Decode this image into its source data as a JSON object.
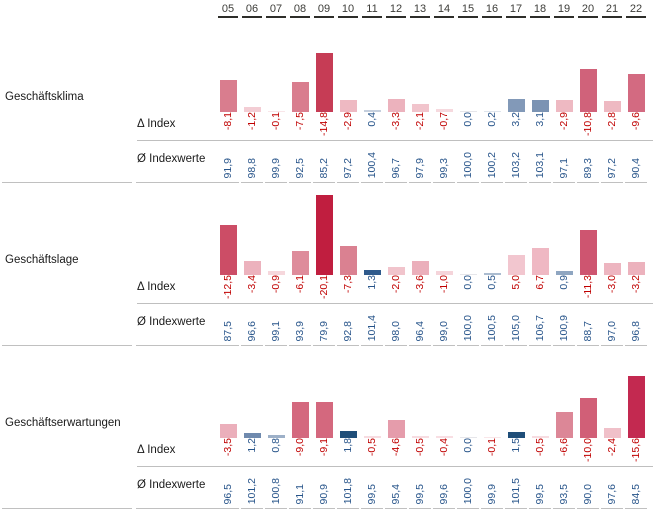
{
  "years": [
    "05",
    "06",
    "07",
    "08",
    "09",
    "10",
    "11",
    "12",
    "13",
    "14",
    "15",
    "16",
    "17",
    "18",
    "19",
    "20",
    "21",
    "22"
  ],
  "labels": {
    "delta": "Δ Index",
    "avg": "Ø Indexwerte"
  },
  "colors": {
    "negative_text": "#c00000",
    "positive_text": "#27548a",
    "avg_text": "#27548a",
    "year_text": "#3c3c38",
    "grid_line": "#bfbfbf",
    "zero_bar": "#e6e6ea"
  },
  "sections": [
    {
      "label": "Geschäftsklima",
      "delta": [
        "-8,1",
        "-1,2",
        "-0,1",
        "-7,5",
        "-14,8",
        "-2,9",
        "0,4",
        "-3,3",
        "-2,1",
        "-0,7",
        "0,0",
        "0,2",
        "3,2",
        "3,1",
        "-2,9",
        "-10,8",
        "-2,8",
        "-9,6"
      ],
      "delta_values": [
        -8.1,
        -1.2,
        -0.1,
        -7.5,
        -14.8,
        -2.9,
        0.4,
        -3.3,
        -2.1,
        -0.7,
        0.0,
        0.2,
        3.2,
        3.1,
        -2.9,
        -10.8,
        -2.8,
        -9.6
      ],
      "delta_text_colors": [
        "red",
        "red",
        "red",
        "red",
        "red",
        "red",
        "blue",
        "red",
        "red",
        "red",
        "blue",
        "blue",
        "blue",
        "blue",
        "red",
        "red",
        "red",
        "red"
      ],
      "bar_colors": [
        "#d97d8e",
        "#f3cdd4",
        "#f9e6e9",
        "#d97d8e",
        "#c63c55",
        "#eeb9c2",
        "#c5cfdd",
        "#ecb2bd",
        "#f1c4cc",
        "#f6d9de",
        "#e6e6ea",
        "#dfe5ed",
        "#8299b8",
        "#7b93b3",
        "#eeb9c2",
        "#d0627a",
        "#eeb9c2",
        "#d36a81"
      ],
      "avg": [
        "91,9",
        "98,8",
        "99,9",
        "92,5",
        "85,2",
        "97,2",
        "100,4",
        "96,7",
        "97,9",
        "99,3",
        "100,0",
        "100,2",
        "103,2",
        "103,1",
        "97,1",
        "89,3",
        "97,2",
        "90,4"
      ]
    },
    {
      "label": "Geschäftslage",
      "delta": [
        "-12,5",
        "-3,4",
        "-0,9",
        "-6,1",
        "-20,1",
        "-7,3",
        "1,3",
        "-2,0",
        "-3,6",
        "-1,0",
        "0,0",
        "0,5",
        "5,0",
        "6,7",
        "0,9",
        "-11,3",
        "-3,0",
        "-3,2"
      ],
      "delta_values": [
        -12.5,
        -3.4,
        -0.9,
        -6.1,
        -20.1,
        -7.3,
        1.3,
        -2.0,
        -3.6,
        -1.0,
        0.0,
        0.5,
        5.0,
        6.7,
        0.9,
        -11.3,
        -3.0,
        -3.2
      ],
      "delta_text_colors": [
        "red",
        "red",
        "red",
        "red",
        "red",
        "red",
        "blue",
        "red",
        "red",
        "red",
        "blue",
        "blue",
        "red",
        "red",
        "blue",
        "red",
        "red",
        "red"
      ],
      "bar_colors": [
        "#cc4d66",
        "#ecb2bd",
        "#f6d7dc",
        "#de8c9b",
        "#c01e3f",
        "#da8191",
        "#2f5a8c",
        "#f1c4cc",
        "#ebafbb",
        "#f5d4da",
        "#e6e6ea",
        "#abbcd0",
        "#f2c6cf",
        "#efb8c3",
        "#8fa6c1",
        "#ce5570",
        "#edb5c0",
        "#ecb2bd"
      ],
      "avg": [
        "87,5",
        "96,6",
        "99,1",
        "93,9",
        "79,9",
        "92,8",
        "101,4",
        "98,0",
        "96,4",
        "99,0",
        "100,0",
        "100,5",
        "105,0",
        "106,7",
        "100,9",
        "88,7",
        "97,0",
        "96,8"
      ]
    },
    {
      "label": "Geschäftserwartungen",
      "delta": [
        "-3,5",
        "1,2",
        "0,8",
        "-9,0",
        "-9,1",
        "1,8",
        "-0,5",
        "-4,6",
        "-0,5",
        "-0,4",
        "0,0",
        "-0,1",
        "1,5",
        "-0,5",
        "-6,6",
        "-10,0",
        "-2,4",
        "-15,6"
      ],
      "delta_values": [
        -3.5,
        1.2,
        0.8,
        -9.0,
        -9.1,
        1.8,
        -0.5,
        -4.6,
        -0.5,
        -0.4,
        0.0,
        -0.1,
        1.5,
        -0.5,
        -6.6,
        -10.0,
        -2.4,
        -15.6
      ],
      "delta_text_colors": [
        "red",
        "blue",
        "blue",
        "red",
        "red",
        "blue",
        "red",
        "red",
        "red",
        "red",
        "blue",
        "red",
        "blue",
        "red",
        "red",
        "red",
        "red",
        "red"
      ],
      "bar_colors": [
        "#ebafbb",
        "#6f8aae",
        "#9db0c8",
        "#d4687e",
        "#d4687e",
        "#1f4e79",
        "#f7dce1",
        "#e59cab",
        "#f7dce1",
        "#f8dee3",
        "#e6e6ea",
        "#f9e6e9",
        "#1f4e79",
        "#f7dce1",
        "#dc8797",
        "#d15f77",
        "#f0c0c9",
        "#c32950"
      ],
      "avg": [
        "96,5",
        "101,2",
        "100,8",
        "91,1",
        "90,9",
        "101,8",
        "99,5",
        "95,4",
        "99,5",
        "99,6",
        "100,0",
        "99,9",
        "101,5",
        "99,5",
        "93,5",
        "90,0",
        "97,6",
        "84,5"
      ]
    }
  ],
  "chart_data": {
    "type": "bar",
    "categories": [
      "05",
      "06",
      "07",
      "08",
      "09",
      "10",
      "11",
      "12",
      "13",
      "14",
      "15",
      "16",
      "17",
      "18",
      "19",
      "20",
      "21",
      "22"
    ],
    "bar_encoding": "bar height = |Δ Index| (deviation of Ø Indexwerte from 100); red shades = negative, blue shades = positive",
    "series": [
      {
        "name": "Geschäftsklima Δ Index",
        "values": [
          -8.1,
          -1.2,
          -0.1,
          -7.5,
          -14.8,
          -2.9,
          0.4,
          -3.3,
          -2.1,
          -0.7,
          0.0,
          0.2,
          3.2,
          3.1,
          -2.9,
          -10.8,
          -2.8,
          -9.6
        ]
      },
      {
        "name": "Geschäftsklima Ø Indexwerte",
        "values": [
          91.9,
          98.8,
          99.9,
          92.5,
          85.2,
          97.2,
          100.4,
          96.7,
          97.9,
          99.3,
          100.0,
          100.2,
          103.2,
          103.1,
          97.1,
          89.3,
          97.2,
          90.4
        ]
      },
      {
        "name": "Geschäftslage Δ Index",
        "values": [
          -12.5,
          -3.4,
          -0.9,
          -6.1,
          -20.1,
          -7.3,
          1.3,
          -2.0,
          -3.6,
          -1.0,
          0.0,
          0.5,
          5.0,
          6.7,
          0.9,
          -11.3,
          -3.0,
          -3.2
        ]
      },
      {
        "name": "Geschäftslage Ø Indexwerte",
        "values": [
          87.5,
          96.6,
          99.1,
          93.9,
          79.9,
          92.8,
          101.4,
          98.0,
          96.4,
          99.0,
          100.0,
          100.5,
          105.0,
          106.7,
          100.9,
          88.7,
          97.0,
          96.8
        ]
      },
      {
        "name": "Geschäftserwartungen Δ Index",
        "values": [
          -3.5,
          1.2,
          0.8,
          -9.0,
          -9.1,
          1.8,
          -0.5,
          -4.6,
          -0.5,
          -0.4,
          0.0,
          -0.1,
          1.5,
          -0.5,
          -6.6,
          -10.0,
          -2.4,
          -15.6
        ]
      },
      {
        "name": "Geschäftserwartungen Ø Indexwerte",
        "values": [
          96.5,
          101.2,
          100.8,
          91.1,
          90.9,
          101.8,
          99.5,
          95.4,
          99.5,
          99.6,
          100.0,
          99.9,
          101.5,
          99.5,
          93.5,
          90.0,
          97.6,
          84.5
        ]
      }
    ],
    "ylim_delta": [
      -21,
      7
    ],
    "grid": false,
    "legend": false
  }
}
